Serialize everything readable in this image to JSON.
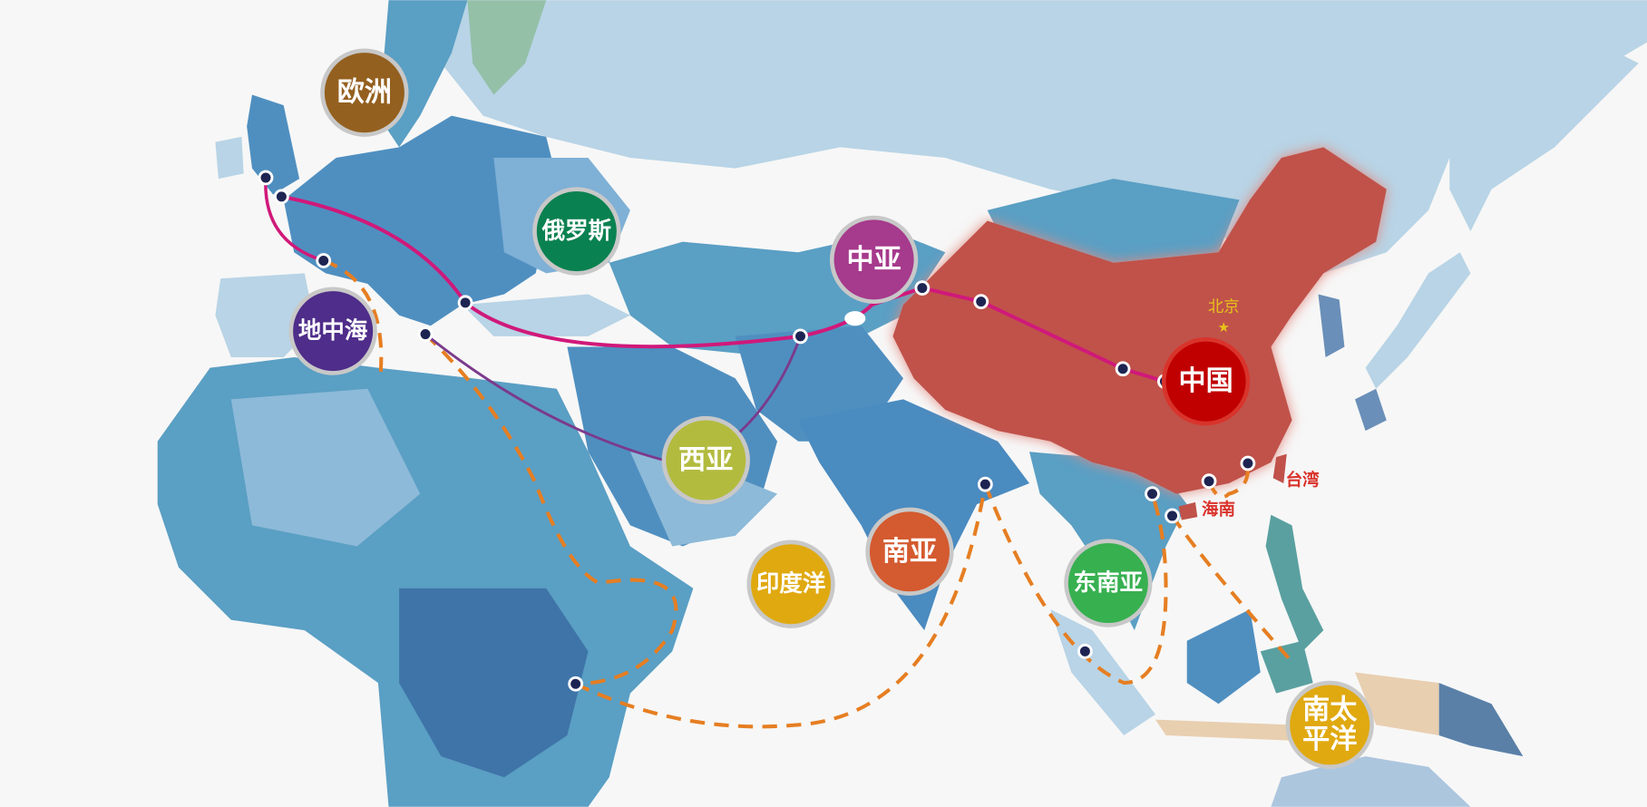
{
  "regions": [
    {
      "label": "欧洲",
      "color": "#94601f"
    },
    {
      "label": "俄罗斯",
      "color": "#0a8150"
    },
    {
      "label": "中亚",
      "color": "#a63a8c"
    },
    {
      "label": "地中海",
      "color": "#4f2d8a"
    },
    {
      "label": "西亚",
      "color": "#b3bb3f"
    },
    {
      "label": "中国",
      "color": "#c00000"
    },
    {
      "label": "南亚",
      "color": "#d45a2f"
    },
    {
      "label": "印度洋",
      "color": "#e0a910"
    },
    {
      "label": "东南亚",
      "color": "#37b050"
    },
    {
      "label_line1": "南太",
      "label_line2": "平洋",
      "color": "#e0a910"
    }
  ],
  "places": {
    "beijing": {
      "label": "北京",
      "color": "#e6c21a"
    },
    "taiwan": {
      "label": "台湾",
      "color": "#d9332b"
    },
    "hainan": {
      "label": "海南",
      "color": "#d9332b"
    }
  },
  "colors": {
    "land_route": "#d0197a",
    "secondary_route": "#7b3a8c",
    "sea_route": "#e67e22",
    "node": "#1e2452",
    "china": "#c0524a",
    "north": "#b8d4e6"
  }
}
